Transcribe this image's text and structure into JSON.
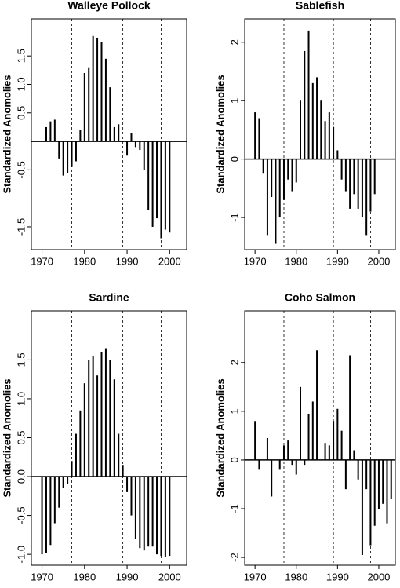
{
  "chart_data": [
    {
      "type": "bar",
      "title": "Walleye Pollock",
      "ylabel": "Standardized Anomolies",
      "color": "#000000",
      "x": [
        1970,
        1971,
        1972,
        1973,
        1974,
        1975,
        1976,
        1977,
        1978,
        1979,
        1980,
        1981,
        1982,
        1983,
        1984,
        1985,
        1986,
        1987,
        1988,
        1989,
        1990,
        1991,
        1992,
        1993,
        1994,
        1995,
        1996,
        1997,
        1998,
        1999,
        2000,
        2001,
        2002,
        2003
      ],
      "values": [
        null,
        0.25,
        0.35,
        0.38,
        -0.3,
        -0.6,
        -0.55,
        -0.45,
        -0.35,
        0.2,
        1.2,
        1.3,
        1.85,
        1.82,
        1.75,
        1.45,
        0.95,
        0.25,
        0.3,
        null,
        -0.25,
        0.15,
        -0.1,
        -0.15,
        -0.5,
        -1.2,
        -1.5,
        -1.35,
        -1.7,
        -1.55,
        -1.6,
        null,
        null,
        null
      ],
      "xlim": [
        1967.5,
        2004
      ],
      "xticks": [
        1970,
        1980,
        1990,
        2000
      ],
      "ylim": [
        -1.9,
        2.15
      ],
      "yticks": [
        -1.5,
        -0.5,
        0.5,
        {
          "value": 1,
          "label": "1.0"
        },
        1.5
      ],
      "vlines": [
        1977,
        1989,
        1998
      ]
    },
    {
      "type": "bar",
      "title": "Sablefish",
      "ylabel": "Standardized Anomolies",
      "color": "#000000",
      "x": [
        1970,
        1971,
        1972,
        1973,
        1974,
        1975,
        1976,
        1977,
        1978,
        1979,
        1980,
        1981,
        1982,
        1983,
        1984,
        1985,
        1986,
        1987,
        1988,
        1989,
        1990,
        1991,
        1992,
        1993,
        1994,
        1995,
        1996,
        1997,
        1998,
        1999,
        2000,
        2001,
        2002,
        2003
      ],
      "values": [
        0.8,
        0.7,
        -0.25,
        -1.3,
        -0.65,
        -1.45,
        -1.0,
        -0.7,
        -0.35,
        -0.55,
        -0.4,
        1.0,
        1.85,
        2.2,
        1.3,
        1.4,
        1.0,
        0.65,
        0.8,
        0.55,
        0.15,
        -0.35,
        -0.55,
        -0.85,
        -0.6,
        -0.85,
        -1.0,
        -1.3,
        -0.9,
        -0.6,
        null,
        null,
        null,
        null
      ],
      "xlim": [
        1967.5,
        2004
      ],
      "xticks": [
        1970,
        1980,
        1990,
        2000
      ],
      "ylim": [
        -1.55,
        2.4
      ],
      "yticks": [
        -1,
        0,
        1,
        2
      ],
      "vlines": [
        1977,
        1989,
        1998
      ]
    },
    {
      "type": "bar",
      "title": "Sardine",
      "ylabel": "Standardized Anomolies",
      "color": "#000000",
      "x": [
        1970,
        1971,
        1972,
        1973,
        1974,
        1975,
        1976,
        1977,
        1978,
        1979,
        1980,
        1981,
        1982,
        1983,
        1984,
        1985,
        1986,
        1987,
        1988,
        1989,
        1990,
        1991,
        1992,
        1993,
        1994,
        1995,
        1996,
        1997,
        1998,
        1999,
        2000,
        2001,
        2002,
        2003
      ],
      "values": [
        -1.0,
        -0.98,
        -0.88,
        -0.6,
        -0.4,
        -0.15,
        -0.1,
        0.2,
        0.55,
        0.85,
        1.2,
        1.5,
        1.55,
        1.3,
        1.6,
        1.65,
        1.5,
        1.25,
        0.55,
        0.15,
        -0.2,
        -0.5,
        -0.8,
        -0.92,
        -0.95,
        -0.9,
        -0.9,
        -1.0,
        -1.02,
        -1.03,
        -1.02,
        null,
        null,
        null
      ],
      "xlim": [
        1967.5,
        2004
      ],
      "xticks": [
        1970,
        1980,
        1990,
        2000
      ],
      "ylim": [
        -1.14,
        2.13
      ],
      "yticks": [
        {
          "value": -1,
          "label": "-1.0"
        },
        -0.5,
        {
          "value": 0,
          "label": "0.0"
        },
        0.5,
        {
          "value": 1,
          "label": "1.0"
        },
        1.5
      ],
      "vlines": [
        1977,
        1989,
        1998
      ]
    },
    {
      "type": "bar",
      "title": "Coho Salmon",
      "ylabel": "Standardized Anomolies",
      "color": "#000000",
      "x": [
        1970,
        1971,
        1972,
        1973,
        1974,
        1975,
        1976,
        1977,
        1978,
        1979,
        1980,
        1981,
        1982,
        1983,
        1984,
        1985,
        1986,
        1987,
        1988,
        1989,
        1990,
        1991,
        1992,
        1993,
        1994,
        1995,
        1996,
        1997,
        1998,
        1999,
        2000,
        2001,
        2002,
        2003
      ],
      "values": [
        0.8,
        -0.2,
        null,
        0.45,
        -0.75,
        null,
        -0.2,
        0.3,
        0.4,
        -0.1,
        -0.3,
        1.5,
        -0.1,
        0.95,
        1.2,
        2.25,
        null,
        0.35,
        0.3,
        0.8,
        1.05,
        0.6,
        -0.6,
        2.15,
        0.2,
        -0.4,
        -1.95,
        -0.6,
        -1.75,
        -1.35,
        -1.0,
        -0.9,
        -1.3,
        -0.8
      ],
      "xlim": [
        1967.5,
        2004
      ],
      "xticks": [
        1970,
        1980,
        1990,
        2000
      ],
      "ylim": [
        -2.16,
        3.06
      ],
      "yticks": [
        -2,
        -1,
        0,
        1,
        2
      ],
      "vlines": [
        1977,
        1989,
        1998
      ]
    }
  ]
}
